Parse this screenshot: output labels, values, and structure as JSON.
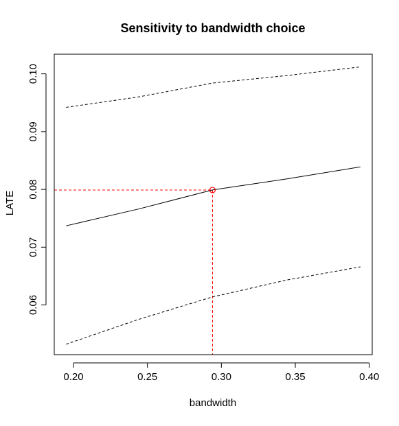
{
  "chart_data": {
    "type": "line",
    "title": "Sensitivity to bandwidth choice",
    "xlabel": "bandwidth",
    "ylabel": "LATE",
    "xlim": [
      0.187,
      0.402
    ],
    "ylim": [
      0.0514,
      0.1034
    ],
    "xticks": [
      "0.20",
      "0.25",
      "0.30",
      "0.35",
      "0.40"
    ],
    "yticks": [
      "0.06",
      "0.07",
      "0.08",
      "0.09",
      "0.10"
    ],
    "grid": false,
    "x": [
      0.195,
      0.244,
      0.294,
      0.344,
      0.394
    ],
    "series": [
      {
        "role": "estimate",
        "style": "solid",
        "color": "#000000",
        "values": [
          0.0737,
          0.0766,
          0.0799,
          0.0818,
          0.0839
        ]
      },
      {
        "role": "upper-bound",
        "style": "dashed",
        "color": "#000000",
        "values": [
          0.0942,
          0.096,
          0.0984,
          0.0997,
          0.1012
        ]
      },
      {
        "role": "lower-bound",
        "style": "dashed",
        "color": "#000000",
        "values": [
          0.0532,
          0.0575,
          0.0614,
          0.0643,
          0.0666
        ]
      }
    ],
    "highlight": {
      "x": 0.294,
      "y": 0.0799,
      "color": "#ff0000",
      "marker": "open-circle",
      "guide_lines": "dashed"
    }
  }
}
